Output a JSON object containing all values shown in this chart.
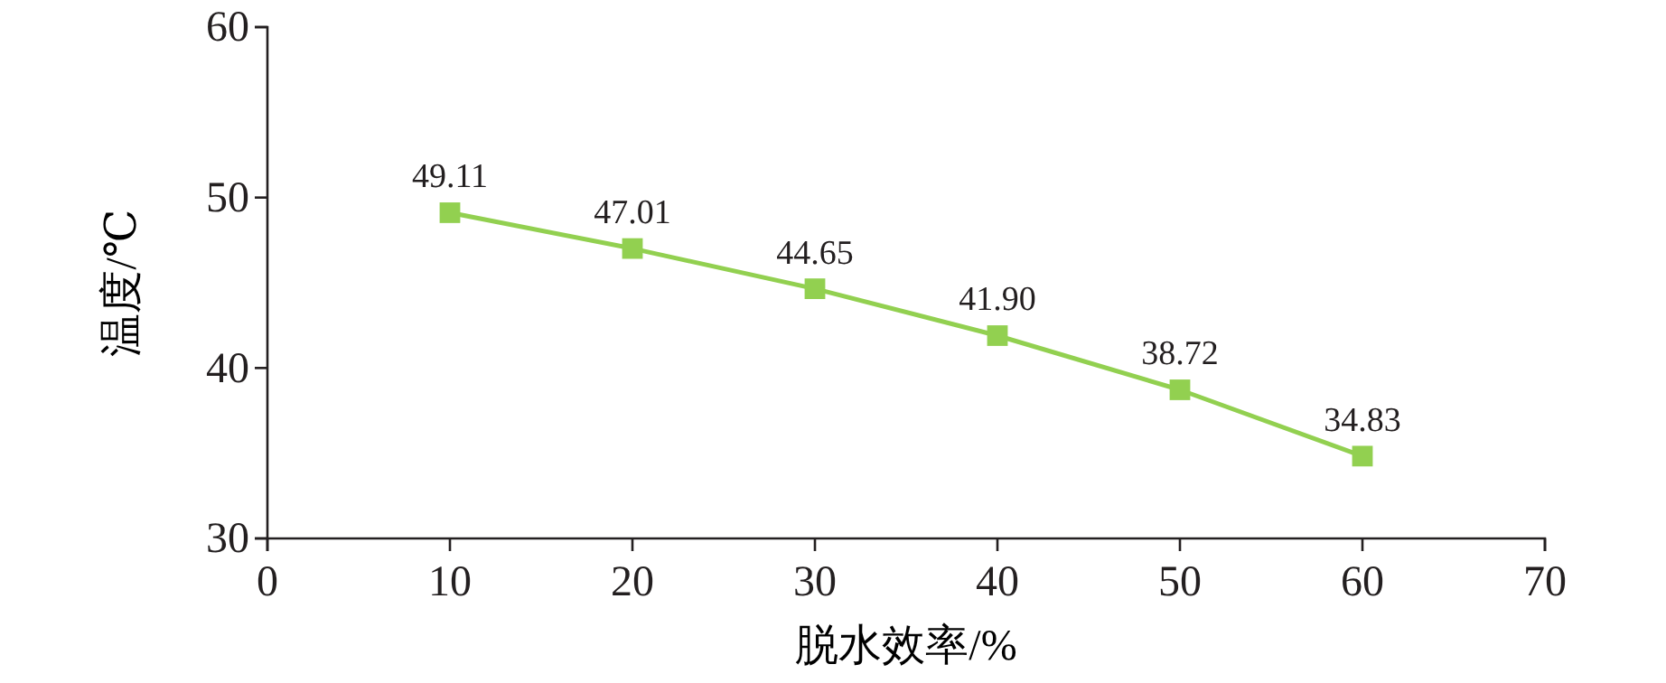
{
  "chart_data": {
    "type": "line",
    "xlabel": "脱水效率/%",
    "ylabel": "温度/℃",
    "x": [
      10,
      20,
      30,
      40,
      50,
      60
    ],
    "series": [
      {
        "color": "#92d050",
        "values": [
          49.11,
          47.01,
          44.65,
          41.9,
          38.72,
          34.83
        ],
        "value_labels": [
          "49.11",
          "47.01",
          "44.65",
          "41.90",
          "38.72",
          "34.83"
        ]
      }
    ],
    "xlim": [
      0,
      70
    ],
    "xticks": [
      0,
      10,
      20,
      30,
      40,
      50,
      60,
      70
    ],
    "ylim": [
      30,
      60
    ],
    "yticks": [
      30,
      40,
      50,
      60
    ],
    "marker": "square"
  }
}
